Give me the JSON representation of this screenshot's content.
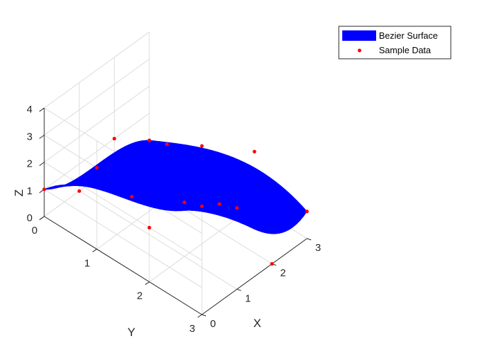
{
  "chart_data": {
    "type": "surface",
    "title": "",
    "xlabel": "X",
    "ylabel": "Y",
    "zlabel": "Z",
    "xlim": [
      0,
      3
    ],
    "ylim": [
      0,
      3
    ],
    "zlim": [
      0,
      4
    ],
    "x_ticks": [
      "0",
      "1",
      "2",
      "3"
    ],
    "y_ticks": [
      "0",
      "1",
      "2",
      "3"
    ],
    "z_ticks": [
      "0",
      "1",
      "2",
      "3",
      "4"
    ],
    "grid": true,
    "legend_position": "top-right",
    "colors": {
      "surface": "#0000ff",
      "points": "#ff0000",
      "axis": "#262626",
      "grid": "#dcdcdc"
    },
    "control_points_z": [
      [
        1,
        3,
        2,
        4
      ],
      [
        0,
        1,
        2,
        3
      ],
      [
        1,
        2,
        1,
        0
      ],
      [
        0,
        1,
        2,
        1
      ]
    ],
    "sample_data": [
      {
        "x": 0,
        "y": 0,
        "z": 1
      },
      {
        "x": 0,
        "y": 1,
        "z": 3
      },
      {
        "x": 0,
        "y": 2,
        "z": 2
      },
      {
        "x": 0,
        "y": 3,
        "z": 4
      },
      {
        "x": 1,
        "y": 0,
        "z": 0
      },
      {
        "x": 1,
        "y": 1,
        "z": 1
      },
      {
        "x": 1,
        "y": 2,
        "z": 2
      },
      {
        "x": 1,
        "y": 3,
        "z": 3
      },
      {
        "x": 2,
        "y": 0,
        "z": 1
      },
      {
        "x": 2,
        "y": 1,
        "z": 2
      },
      {
        "x": 2,
        "y": 2,
        "z": 1
      },
      {
        "x": 2,
        "y": 3,
        "z": 0
      },
      {
        "x": 3,
        "y": 0,
        "z": 0
      },
      {
        "x": 3,
        "y": 1,
        "z": 1
      },
      {
        "x": 3,
        "y": 2,
        "z": 2
      },
      {
        "x": 3,
        "y": 3,
        "z": 1
      }
    ],
    "legend": [
      {
        "label": "Bezier Surface",
        "kind": "patch",
        "color": "#0000ff"
      },
      {
        "label": "Sample Data",
        "kind": "marker",
        "color": "#ff0000"
      }
    ]
  }
}
